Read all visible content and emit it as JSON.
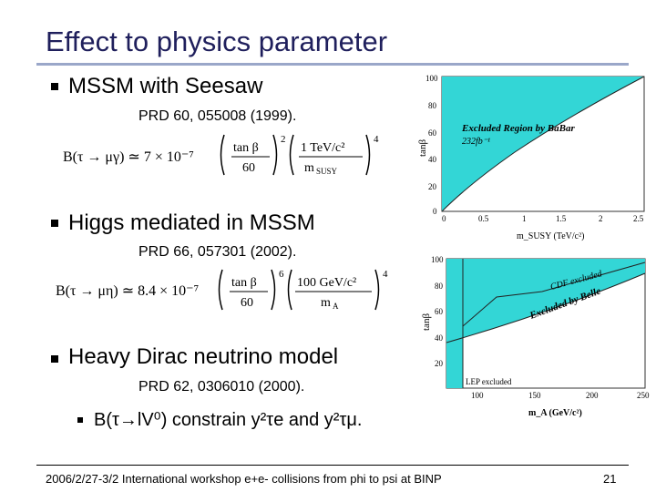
{
  "slide": {
    "title": "Effect to physics parameter",
    "bullets": [
      {
        "text": "MSSM with Seesaw",
        "ref": "PRD 60, 055008 (1999)."
      },
      {
        "text": "Higgs mediated in MSSM",
        "ref": "PRD 66, 057301 (2002)."
      },
      {
        "text": "Heavy Dirac neutrino model",
        "ref": "PRD 62, 0306010 (2000)."
      }
    ],
    "sub_bullet": "B(τ→lV⁰) constrain y²τe and y²τμ.",
    "formulas": {
      "f1_lhs": "B(τ → μγ) ≃ 7 × 10⁻⁷",
      "f1_rhs": "(tan β / 60)² (1 TeV/c² / m_SUSY)⁴",
      "f2_lhs": "B(τ → μη) ≃ 8.4 × 10⁻⁷",
      "f2_rhs": "(tan β / 60)⁶ (100 GeV/c² / m_A)⁴"
    },
    "footer": {
      "left": "2006/2/27-3/2 International workshop e+e- collisions from phi to psi at BINP",
      "page": "21"
    }
  },
  "plot1": {
    "ylabel": "tanβ",
    "xlabel": "m_SUSY (TeV/c²)",
    "annotation": "Excluded Region by BaBar",
    "annotation2": "232fb⁻¹",
    "xticks": [
      "0",
      "0.5",
      "1",
      "1.5",
      "2",
      "2.5"
    ],
    "yticks": [
      "0",
      "20",
      "40",
      "60",
      "80",
      "100"
    ],
    "fill_color": "#33d6d6"
  },
  "plot2": {
    "ylabel": "tanβ",
    "xlabel": "m_A (GeV/c²)",
    "annotation_cdf": "CDF excluded",
    "annotation_belle": "Excluded by Belle",
    "annotation_lep": "LEP excluded",
    "xticks": [
      "100",
      "150",
      "200",
      "250"
    ],
    "yticks": [
      "20",
      "40",
      "60",
      "80",
      "100"
    ],
    "fill_color": "#33d6d6"
  }
}
